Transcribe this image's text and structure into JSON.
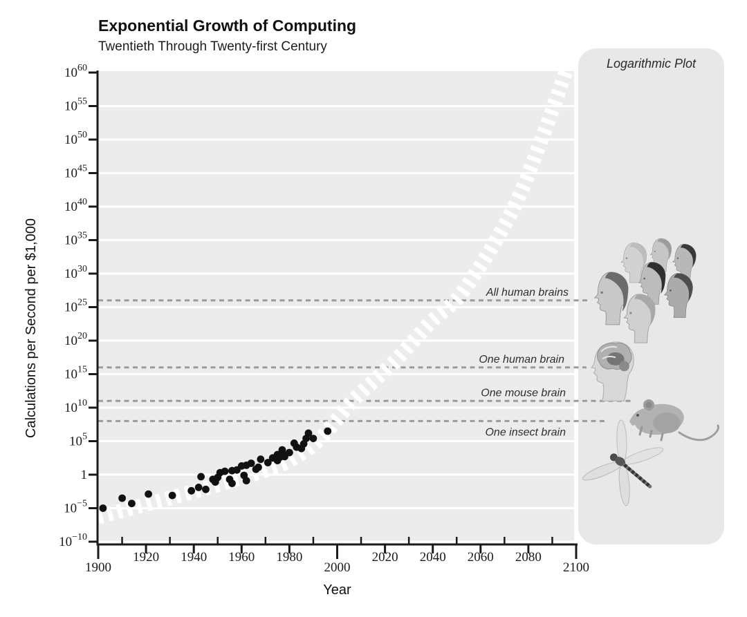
{
  "header": {
    "title": "Exponential Growth of Computing",
    "subtitle": "Twentieth Through Twenty-first Century"
  },
  "panel": {
    "label": "Logarithmic Plot"
  },
  "colors": {
    "plot_bg": "#ececec",
    "panel_bg": "#e8e8e8",
    "gridline": "#ffffff",
    "reference_line": "#9b9b9b",
    "data_point": "#111111",
    "trend_band": "#ffffff",
    "axis": "#1a1a1a",
    "annotation_text": "#2e2e2e"
  },
  "chart_data": {
    "type": "scatter",
    "title": "Exponential Growth of Computing",
    "subtitle": "Twentieth Through Twenty-first Century",
    "xlabel": "Year",
    "ylabel": "Calculations per Second per $1,000",
    "plot_style": "log-linear",
    "grid": {
      "horizontal": true,
      "vertical": false
    },
    "x_axis": {
      "min": 1900,
      "max": 2100,
      "major_step": 20,
      "minor_step": 10,
      "tick_labels": [
        "1900",
        "1920",
        "1940",
        "1960",
        "1980",
        "2000",
        "2020",
        "2040",
        "2060",
        "2080",
        "2100"
      ],
      "long_tick_years": [
        1900,
        2000,
        2100
      ]
    },
    "y_axis": {
      "scale": "log10",
      "min_exponent": -10,
      "max_exponent": 60,
      "step_exponent": 5,
      "tick_exponents": [
        60,
        55,
        50,
        45,
        40,
        35,
        30,
        25,
        20,
        15,
        10,
        5,
        0,
        -5,
        -10
      ],
      "unit_label_for_exponent_0": "1"
    },
    "series": [
      {
        "name": "historical-computing-devices",
        "type": "scatter",
        "unit": "log10 of calculations per second per $1,000",
        "points": [
          [
            1902,
            -5.0
          ],
          [
            1910,
            -3.5
          ],
          [
            1914,
            -4.3
          ],
          [
            1921,
            -2.9
          ],
          [
            1931,
            -3.1
          ],
          [
            1939,
            -2.4
          ],
          [
            1942,
            -1.9
          ],
          [
            1943,
            -0.3
          ],
          [
            1945,
            -2.2
          ],
          [
            1948,
            -0.7
          ],
          [
            1949,
            -1.1
          ],
          [
            1950,
            -0.4
          ],
          [
            1951,
            0.3
          ],
          [
            1953,
            0.5
          ],
          [
            1955,
            -0.7
          ],
          [
            1956,
            -1.3
          ],
          [
            1956,
            0.6
          ],
          [
            1958,
            0.7
          ],
          [
            1960,
            1.3
          ],
          [
            1961,
            -0.1
          ],
          [
            1962,
            -0.9
          ],
          [
            1962,
            1.4
          ],
          [
            1964,
            1.7
          ],
          [
            1966,
            0.8
          ],
          [
            1967,
            1.1
          ],
          [
            1968,
            2.3
          ],
          [
            1971,
            1.8
          ],
          [
            1973,
            2.5
          ],
          [
            1975,
            2.1
          ],
          [
            1975,
            3.0
          ],
          [
            1976,
            2.6
          ],
          [
            1977,
            3.7
          ],
          [
            1977,
            3.2
          ],
          [
            1978,
            2.7
          ],
          [
            1980,
            3.3
          ],
          [
            1982,
            4.7
          ],
          [
            1983,
            4.1
          ],
          [
            1985,
            3.9
          ],
          [
            1986,
            4.6
          ],
          [
            1987,
            5.4
          ],
          [
            1988,
            6.2
          ],
          [
            1990,
            5.4
          ],
          [
            1996,
            6.5
          ]
        ]
      },
      {
        "name": "exponential-trend-projection",
        "type": "line",
        "style": "white-dashed-band",
        "points": [
          [
            1900,
            -6.3
          ],
          [
            1931,
            -3.4
          ],
          [
            1952,
            -1.3
          ],
          [
            1973,
            1.0
          ],
          [
            1982,
            2.5
          ],
          [
            1993,
            5.4
          ],
          [
            2007,
            11.2
          ],
          [
            2024,
            16.9
          ],
          [
            2039,
            22.7
          ],
          [
            2053,
            27.5
          ],
          [
            2073,
            39.2
          ],
          [
            2086,
            50.5
          ],
          [
            2096,
            60.5
          ]
        ]
      }
    ],
    "reference_lines": [
      {
        "label": "All human brains",
        "log10_value": 26,
        "label_position": "above"
      },
      {
        "label": "One human brain",
        "log10_value": 16,
        "label_position": "above"
      },
      {
        "label": "One mouse brain",
        "log10_value": 11,
        "label_position": "above"
      },
      {
        "label": "One insect brain",
        "log10_value": 8,
        "label_position": "below"
      }
    ],
    "illustrations": [
      {
        "name": "human-heads-collage",
        "represents": "All human brains"
      },
      {
        "name": "human-brain-head",
        "represents": "One human brain"
      },
      {
        "name": "mouse",
        "represents": "One mouse brain"
      },
      {
        "name": "dragonfly",
        "represents": "One insect brain"
      }
    ]
  }
}
